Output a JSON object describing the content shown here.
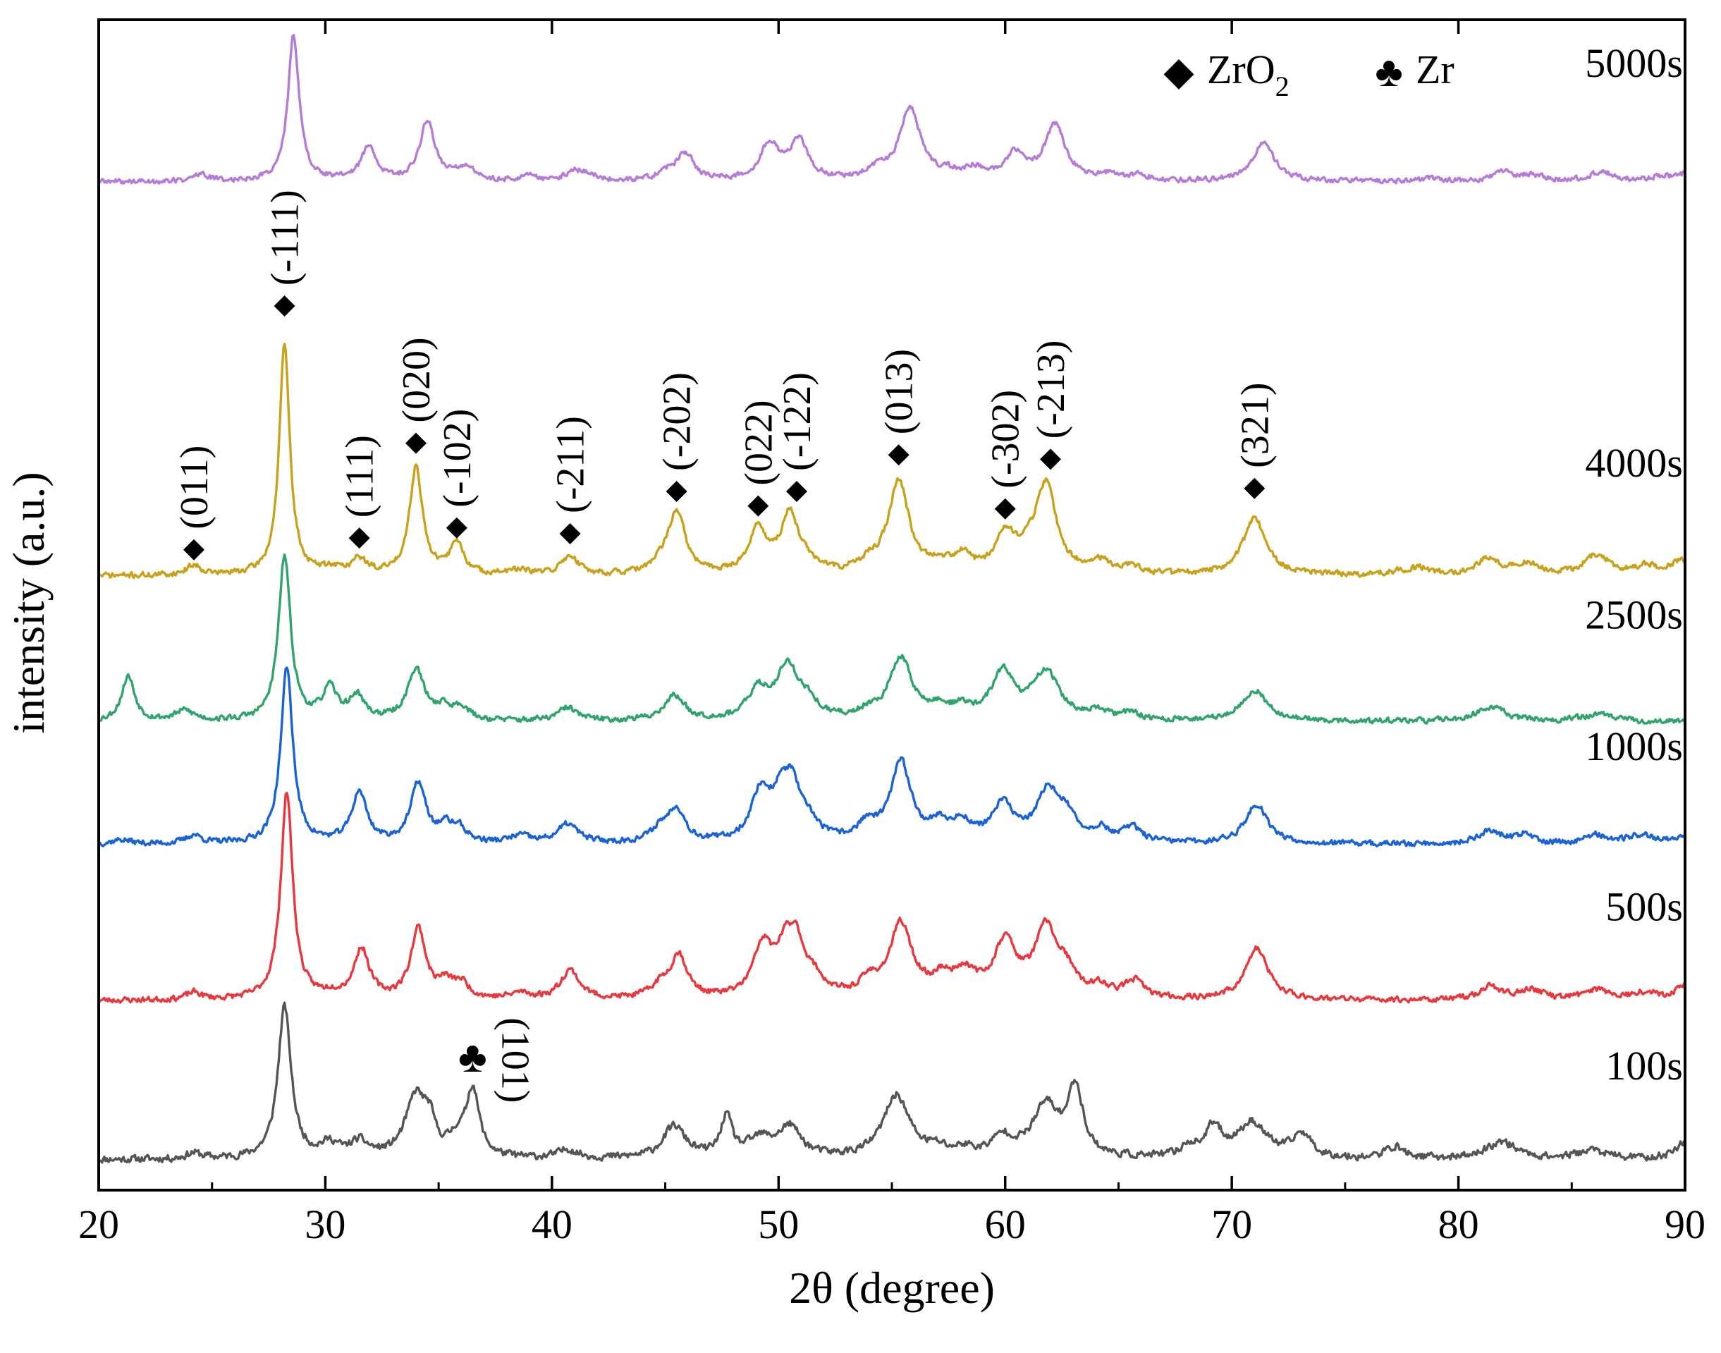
{
  "chart_data": {
    "type": "line",
    "title": "",
    "xlabel": "2θ (degree)",
    "ylabel": "intensity (a.u.)",
    "xlim": [
      20,
      90
    ],
    "xticks": [
      20,
      30,
      40,
      50,
      60,
      70,
      80,
      90
    ],
    "xtick_labels": [
      "20",
      "30",
      "40",
      "50",
      "60",
      "70",
      "80",
      "90"
    ],
    "y_ticks_shown": false,
    "grid": false,
    "legend": {
      "position": "top-right",
      "entries": [
        {
          "symbol": "diamond-icon",
          "glyph": "◆",
          "label_main": "ZrO",
          "label_sub": "2",
          "label": "ZrO2"
        },
        {
          "symbol": "club-icon",
          "glyph": "♣",
          "label": "Zr"
        }
      ]
    },
    "series": [
      {
        "name": "100s",
        "color": "#555555",
        "offset": 0,
        "noise": 0.28,
        "seed": 11,
        "peaks": [
          [
            24.2,
            0.4,
            0.4
          ],
          [
            28.2,
            10.4,
            0.35
          ],
          [
            30.2,
            0.9,
            0.5
          ],
          [
            31.5,
            1.0,
            0.5
          ],
          [
            34,
            4.2,
            0.55
          ],
          [
            34.6,
            1.7,
            0.3
          ],
          [
            35.8,
            1.1,
            0.4
          ],
          [
            36.5,
            4.6,
            0.35
          ],
          [
            40.7,
            0.6,
            0.5
          ],
          [
            45.4,
            2.2,
            0.6
          ],
          [
            47.7,
            2.7,
            0.3
          ],
          [
            49.2,
            1.2,
            0.7
          ],
          [
            50.5,
            2.0,
            0.6
          ],
          [
            55.2,
            4.3,
            0.7
          ],
          [
            57,
            0.5,
            0.5
          ],
          [
            58.2,
            0.5,
            0.5
          ],
          [
            59.9,
            1.3,
            0.6
          ],
          [
            61.8,
            3.5,
            0.7
          ],
          [
            63.1,
            4.6,
            0.4
          ],
          [
            68.1,
            0.7,
            0.4
          ],
          [
            69.2,
            2.0,
            0.45
          ],
          [
            70.9,
            2.4,
            0.8
          ],
          [
            73.1,
            1.6,
            0.5
          ],
          [
            77.2,
            0.8,
            0.5
          ],
          [
            81.9,
            1.2,
            0.8
          ],
          [
            85.9,
            0.6,
            0.8
          ],
          [
            90,
            1.2,
            0.5
          ]
        ]
      },
      {
        "name": "500s",
        "color": "#e8383d",
        "offset": 10.9,
        "noise": 0.22,
        "seed": 23,
        "peaks": [
          [
            24.2,
            0.5,
            0.4
          ],
          [
            28.3,
            14.2,
            0.32
          ],
          [
            30.3,
            0.3,
            0.5
          ],
          [
            31.6,
            3.4,
            0.4
          ],
          [
            34.1,
            4.8,
            0.4
          ],
          [
            35.3,
            1.0,
            0.4
          ],
          [
            36,
            1.0,
            0.4
          ],
          [
            38.6,
            0.4,
            0.5
          ],
          [
            40.8,
            2.0,
            0.5
          ],
          [
            44.8,
            0.8,
            0.5
          ],
          [
            45.6,
            2.9,
            0.45
          ],
          [
            49.3,
            3.4,
            0.5
          ],
          [
            50.3,
            2.8,
            0.5
          ],
          [
            50.8,
            3.0,
            0.45
          ],
          [
            51.6,
            1.0,
            0.5
          ],
          [
            54,
            1.0,
            0.5
          ],
          [
            55.4,
            5.0,
            0.6
          ],
          [
            57.2,
            1.1,
            0.5
          ],
          [
            58.2,
            1.6,
            0.6
          ],
          [
            60,
            3.7,
            0.6
          ],
          [
            61.8,
            4.6,
            0.6
          ],
          [
            62.7,
            1.4,
            0.5
          ],
          [
            64.2,
            0.7,
            0.5
          ],
          [
            65.7,
            1.2,
            0.5
          ],
          [
            71.1,
            3.5,
            0.6
          ],
          [
            81.4,
            0.9,
            0.6
          ],
          [
            83.2,
            0.7,
            0.6
          ],
          [
            86.1,
            0.7,
            0.7
          ],
          [
            88.2,
            0.5,
            0.7
          ],
          [
            90,
            1.0,
            0.5
          ]
        ]
      },
      {
        "name": "1000s",
        "color": "#1a63d6",
        "offset": 21.6,
        "noise": 0.22,
        "seed": 37,
        "peaks": [
          [
            21,
            0.3,
            0.5
          ],
          [
            24.2,
            0.6,
            0.4
          ],
          [
            28.3,
            12.1,
            0.32
          ],
          [
            31.5,
            3.5,
            0.4
          ],
          [
            34.1,
            4.1,
            0.4
          ],
          [
            35.3,
            1.0,
            0.4
          ],
          [
            35.9,
            0.9,
            0.4
          ],
          [
            38.6,
            0.5,
            0.5
          ],
          [
            40.7,
            1.3,
            0.55
          ],
          [
            44.8,
            0.9,
            0.5
          ],
          [
            45.5,
            2.2,
            0.45
          ],
          [
            49.2,
            3.2,
            0.5
          ],
          [
            50.1,
            2.5,
            0.5
          ],
          [
            50.6,
            3.2,
            0.45
          ],
          [
            51.4,
            1.0,
            0.5
          ],
          [
            53.9,
            1.1,
            0.5
          ],
          [
            55.4,
            5.4,
            0.55
          ],
          [
            57.1,
            1.1,
            0.5
          ],
          [
            58.1,
            1.2,
            0.5
          ],
          [
            59.9,
            2.5,
            0.6
          ],
          [
            61.9,
            3.4,
            0.6
          ],
          [
            62.7,
            1.4,
            0.5
          ],
          [
            64.2,
            0.8,
            0.5
          ],
          [
            65.6,
            1.0,
            0.5
          ],
          [
            71.1,
            2.7,
            0.6
          ],
          [
            81.4,
            0.9,
            0.6
          ],
          [
            82.9,
            0.6,
            0.5
          ],
          [
            86.1,
            0.6,
            0.6
          ],
          [
            88.1,
            0.6,
            0.7
          ],
          [
            90,
            0.6,
            0.5
          ]
        ]
      },
      {
        "name": "2500s",
        "color": "#30a46c",
        "offset": 30,
        "noise": 0.22,
        "seed": 53,
        "peaks": [
          [
            21.3,
            3.1,
            0.35
          ],
          [
            23.8,
            0.7,
            0.5
          ],
          [
            28.2,
            11.3,
            0.32
          ],
          [
            30.2,
            2.1,
            0.4
          ],
          [
            31.4,
            1.6,
            0.4
          ],
          [
            34,
            3.5,
            0.45
          ],
          [
            35.2,
            0.8,
            0.4
          ],
          [
            36,
            0.9,
            0.4
          ],
          [
            40.7,
            0.9,
            0.5
          ],
          [
            45.4,
            1.7,
            0.55
          ],
          [
            49.1,
            1.9,
            0.55
          ],
          [
            50.4,
            3.6,
            0.6
          ],
          [
            51.3,
            0.9,
            0.5
          ],
          [
            54,
            0.5,
            0.5
          ],
          [
            55.4,
            4.2,
            0.6
          ],
          [
            57.1,
            0.7,
            0.5
          ],
          [
            58.1,
            0.7,
            0.5
          ],
          [
            59.9,
            3.2,
            0.6
          ],
          [
            61.8,
            3.3,
            0.7
          ],
          [
            64.1,
            0.5,
            0.5
          ],
          [
            65.5,
            0.5,
            0.5
          ],
          [
            71,
            2.1,
            0.7
          ],
          [
            81.4,
            1.0,
            0.8
          ],
          [
            86.1,
            0.5,
            0.8
          ]
        ]
      },
      {
        "name": "4000s",
        "color": "#c8a21c",
        "offset": 40,
        "noise": 0.22,
        "seed": 71,
        "peaks": [
          [
            24.2,
            0.7,
            0.4
          ],
          [
            28.2,
            15.8,
            0.28
          ],
          [
            30.3,
            0.4,
            0.5
          ],
          [
            31.5,
            1.0,
            0.4
          ],
          [
            34,
            7.4,
            0.35
          ],
          [
            35.8,
            2.2,
            0.35
          ],
          [
            38.5,
            0.3,
            0.5
          ],
          [
            40.8,
            1.3,
            0.45
          ],
          [
            44.8,
            0.5,
            0.5
          ],
          [
            45.5,
            4.3,
            0.45
          ],
          [
            49.1,
            3.0,
            0.5
          ],
          [
            50.5,
            4.0,
            0.45
          ],
          [
            51.3,
            0.6,
            0.5
          ],
          [
            54,
            0.6,
            0.5
          ],
          [
            55.3,
            6.3,
            0.55
          ],
          [
            57.1,
            0.6,
            0.5
          ],
          [
            58.1,
            1.1,
            0.5
          ],
          [
            60,
            2.6,
            0.5
          ],
          [
            61,
            0.9,
            0.5
          ],
          [
            61.8,
            6.0,
            0.55
          ],
          [
            64.2,
            0.8,
            0.5
          ],
          [
            65.5,
            0.5,
            0.5
          ],
          [
            71,
            3.9,
            0.6
          ],
          [
            77.5,
            0.2,
            0.8
          ],
          [
            78.3,
            0.4,
            0.6
          ],
          [
            81.3,
            1.1,
            0.6
          ],
          [
            83,
            0.8,
            0.6
          ],
          [
            86.1,
            1.4,
            0.7
          ],
          [
            88.3,
            0.6,
            0.6
          ],
          [
            89.8,
            1.0,
            0.5
          ]
        ]
      },
      {
        "name": "5000s",
        "color": "#b57bd6",
        "offset": 67,
        "noise": 0.2,
        "seed": 89,
        "peaks": [
          [
            24.5,
            0.5,
            0.4
          ],
          [
            28.6,
            10.0,
            0.3
          ],
          [
            31.9,
            2.3,
            0.4
          ],
          [
            34.5,
            4.1,
            0.4
          ],
          [
            35.7,
            0.4,
            0.4
          ],
          [
            36.3,
            0.7,
            0.4
          ],
          [
            38.9,
            0.3,
            0.5
          ],
          [
            41,
            0.6,
            0.5
          ],
          [
            41.6,
            0.3,
            0.5
          ],
          [
            45.1,
            0.5,
            0.5
          ],
          [
            45.9,
            1.8,
            0.45
          ],
          [
            49.6,
            2.5,
            0.5
          ],
          [
            50.9,
            2.6,
            0.5
          ],
          [
            54.3,
            0.6,
            0.5
          ],
          [
            55.8,
            5.0,
            0.55
          ],
          [
            57.5,
            0.4,
            0.5
          ],
          [
            58.6,
            0.7,
            0.5
          ],
          [
            60.4,
            1.7,
            0.55
          ],
          [
            62.2,
            3.8,
            0.55
          ],
          [
            64.5,
            0.4,
            0.5
          ],
          [
            65.9,
            0.4,
            0.5
          ],
          [
            71.4,
            2.6,
            0.6
          ],
          [
            78.9,
            0.2,
            0.6
          ],
          [
            82,
            0.6,
            0.6
          ],
          [
            83.3,
            0.4,
            0.6
          ],
          [
            86.3,
            0.7,
            0.6
          ],
          [
            88.9,
            0.3,
            0.6
          ],
          [
            90,
            0.5,
            0.5
          ]
        ]
      }
    ],
    "series_labels": [
      {
        "text": "100s",
        "series": "100s",
        "x_pos": 89.9,
        "level": 5.5
      },
      {
        "text": "500s",
        "series": "500s",
        "x_pos": 89.9,
        "level": 16.4
      },
      {
        "text": "1000s",
        "series": "1000s",
        "x_pos": 89.9,
        "level": 27.4
      },
      {
        "text": "2500s",
        "series": "2500s",
        "x_pos": 89.9,
        "level": 36.4
      },
      {
        "text": "4000s",
        "series": "4000s",
        "x_pos": 89.9,
        "level": 46.8
      },
      {
        "text": "5000s",
        "series": "5000s",
        "x_pos": 89.9,
        "level": 74.2
      }
    ],
    "peak_annotations": [
      {
        "phase": "ZrO2",
        "symbol": "diamond-icon",
        "glyph": "◆",
        "label": "(011)",
        "two_theta": 24.2,
        "symbol_level": 41.8,
        "label_level": 43.2
      },
      {
        "phase": "ZrO2",
        "symbol": "diamond-icon",
        "glyph": "◆",
        "label": "(-111)",
        "two_theta": 28.2,
        "symbol_level": 58.5,
        "label_level": 59.9
      },
      {
        "phase": "ZrO2",
        "symbol": "diamond-icon",
        "glyph": "◆",
        "label": "(111)",
        "two_theta": 31.5,
        "symbol_level": 42.6,
        "label_level": 44.0
      },
      {
        "phase": "ZrO2",
        "symbol": "diamond-icon",
        "glyph": "◆",
        "label": "(020)",
        "two_theta": 34.0,
        "symbol_level": 49.1,
        "label_level": 50.5
      },
      {
        "phase": "ZrO2",
        "symbol": "diamond-icon",
        "glyph": "◆",
        "label": "(-102)",
        "two_theta": 35.8,
        "symbol_level": 43.3,
        "label_level": 44.7
      },
      {
        "phase": "ZrO2",
        "symbol": "diamond-icon",
        "glyph": "◆",
        "label": "(-211)",
        "two_theta": 40.8,
        "symbol_level": 42.9,
        "label_level": 44.3
      },
      {
        "phase": "ZrO2",
        "symbol": "diamond-icon",
        "glyph": "◆",
        "label": "(-202)",
        "two_theta": 45.5,
        "symbol_level": 45.8,
        "label_level": 47.2
      },
      {
        "phase": "ZrO2",
        "symbol": "diamond-icon",
        "glyph": "◆",
        "label": "(022)",
        "two_theta": 49.1,
        "symbol_level": 44.8,
        "label_level": 46.2
      },
      {
        "phase": "ZrO2",
        "symbol": "diamond-icon",
        "glyph": "◆",
        "label": "(-122)",
        "two_theta": 50.8,
        "symbol_level": 45.8,
        "label_level": 47.2
      },
      {
        "phase": "ZrO2",
        "symbol": "diamond-icon",
        "glyph": "◆",
        "label": "(013)",
        "two_theta": 55.3,
        "symbol_level": 48.3,
        "label_level": 49.7
      },
      {
        "phase": "ZrO2",
        "symbol": "diamond-icon",
        "glyph": "◆",
        "label": "(-302)",
        "two_theta": 60.0,
        "symbol_level": 44.6,
        "label_level": 46.0
      },
      {
        "phase": "ZrO2",
        "symbol": "diamond-icon",
        "glyph": "◆",
        "label": "(-213)",
        "two_theta": 62.0,
        "symbol_level": 48.0,
        "label_level": 49.4
      },
      {
        "phase": "ZrO2",
        "symbol": "diamond-icon",
        "glyph": "◆",
        "label": "(321)",
        "two_theta": 71.0,
        "symbol_level": 46.0,
        "label_level": 47.4
      },
      {
        "phase": "Zr",
        "symbol": "club-icon",
        "glyph": "♣",
        "label": "(101)",
        "two_theta": 36.5,
        "symbol_level": 7.0,
        "label_level": 8.4
      }
    ]
  }
}
